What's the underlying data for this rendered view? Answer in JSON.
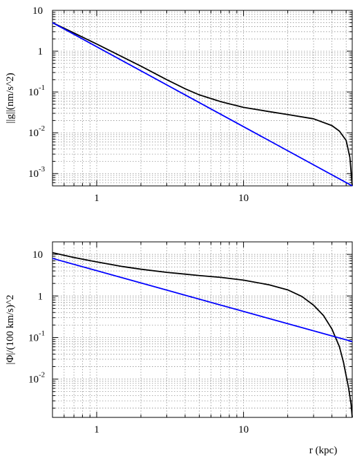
{
  "chart_data": [
    {
      "type": "line",
      "title": "",
      "xlabel": "",
      "ylabel": "||g||(nm/s^2)",
      "x_scale": "log",
      "y_scale": "log",
      "xlim": [
        0.5,
        55
      ],
      "ylim": [
        0.0005,
        10
      ],
      "grid": true,
      "x_ticks": [
        {
          "value": 1,
          "label": "1"
        },
        {
          "value": 10,
          "label": "10"
        }
      ],
      "y_ticks": [
        {
          "value": 10,
          "label": "10",
          "exp": ""
        },
        {
          "value": 1,
          "label": "1",
          "exp": ""
        },
        {
          "value": 0.1,
          "label": "10",
          "exp": "-1"
        },
        {
          "value": 0.01,
          "label": "10",
          "exp": "-2"
        },
        {
          "value": 0.001,
          "label": "10",
          "exp": "-3"
        }
      ],
      "series": [
        {
          "color": "#000000",
          "x": [
            0.5,
            0.7,
            1,
            1.5,
            2,
            3,
            4,
            5,
            7,
            10,
            15,
            20,
            30,
            40,
            45,
            50,
            53,
            55
          ],
          "y": [
            5,
            2.8,
            1.5,
            0.72,
            0.43,
            0.2,
            0.12,
            0.085,
            0.058,
            0.042,
            0.033,
            0.028,
            0.022,
            0.015,
            0.011,
            0.0065,
            0.0025,
            0.0005
          ]
        },
        {
          "color": "#0000ff",
          "x": [
            0.5,
            55
          ],
          "y": [
            5,
            0.0005
          ]
        }
      ]
    },
    {
      "type": "line",
      "title": "",
      "xlabel": "r (kpc)",
      "ylabel": "|Φ|/(100 km/s)^2",
      "x_scale": "log",
      "y_scale": "log",
      "xlim": [
        0.5,
        55
      ],
      "ylim": [
        0.0012,
        20
      ],
      "grid": true,
      "x_ticks": [
        {
          "value": 1,
          "label": "1"
        },
        {
          "value": 10,
          "label": "10"
        }
      ],
      "y_ticks": [
        {
          "value": 10,
          "label": "10",
          "exp": ""
        },
        {
          "value": 1,
          "label": "1",
          "exp": ""
        },
        {
          "value": 0.1,
          "label": "10",
          "exp": "-1"
        },
        {
          "value": 0.01,
          "label": "10",
          "exp": "-2"
        }
      ],
      "series": [
        {
          "color": "#000000",
          "x": [
            0.5,
            0.7,
            1,
            1.5,
            2,
            3,
            5,
            7,
            10,
            15,
            20,
            25,
            30,
            35,
            40,
            45,
            48,
            50,
            52,
            54,
            55
          ],
          "y": [
            11,
            8.4,
            6.6,
            5.1,
            4.4,
            3.7,
            3.1,
            2.8,
            2.4,
            1.85,
            1.4,
            0.97,
            0.6,
            0.34,
            0.16,
            0.06,
            0.025,
            0.012,
            0.006,
            0.0025,
            0.0012
          ]
        },
        {
          "color": "#0000ff",
          "x": [
            0.5,
            55
          ],
          "y": [
            8,
            0.08
          ]
        }
      ]
    }
  ]
}
